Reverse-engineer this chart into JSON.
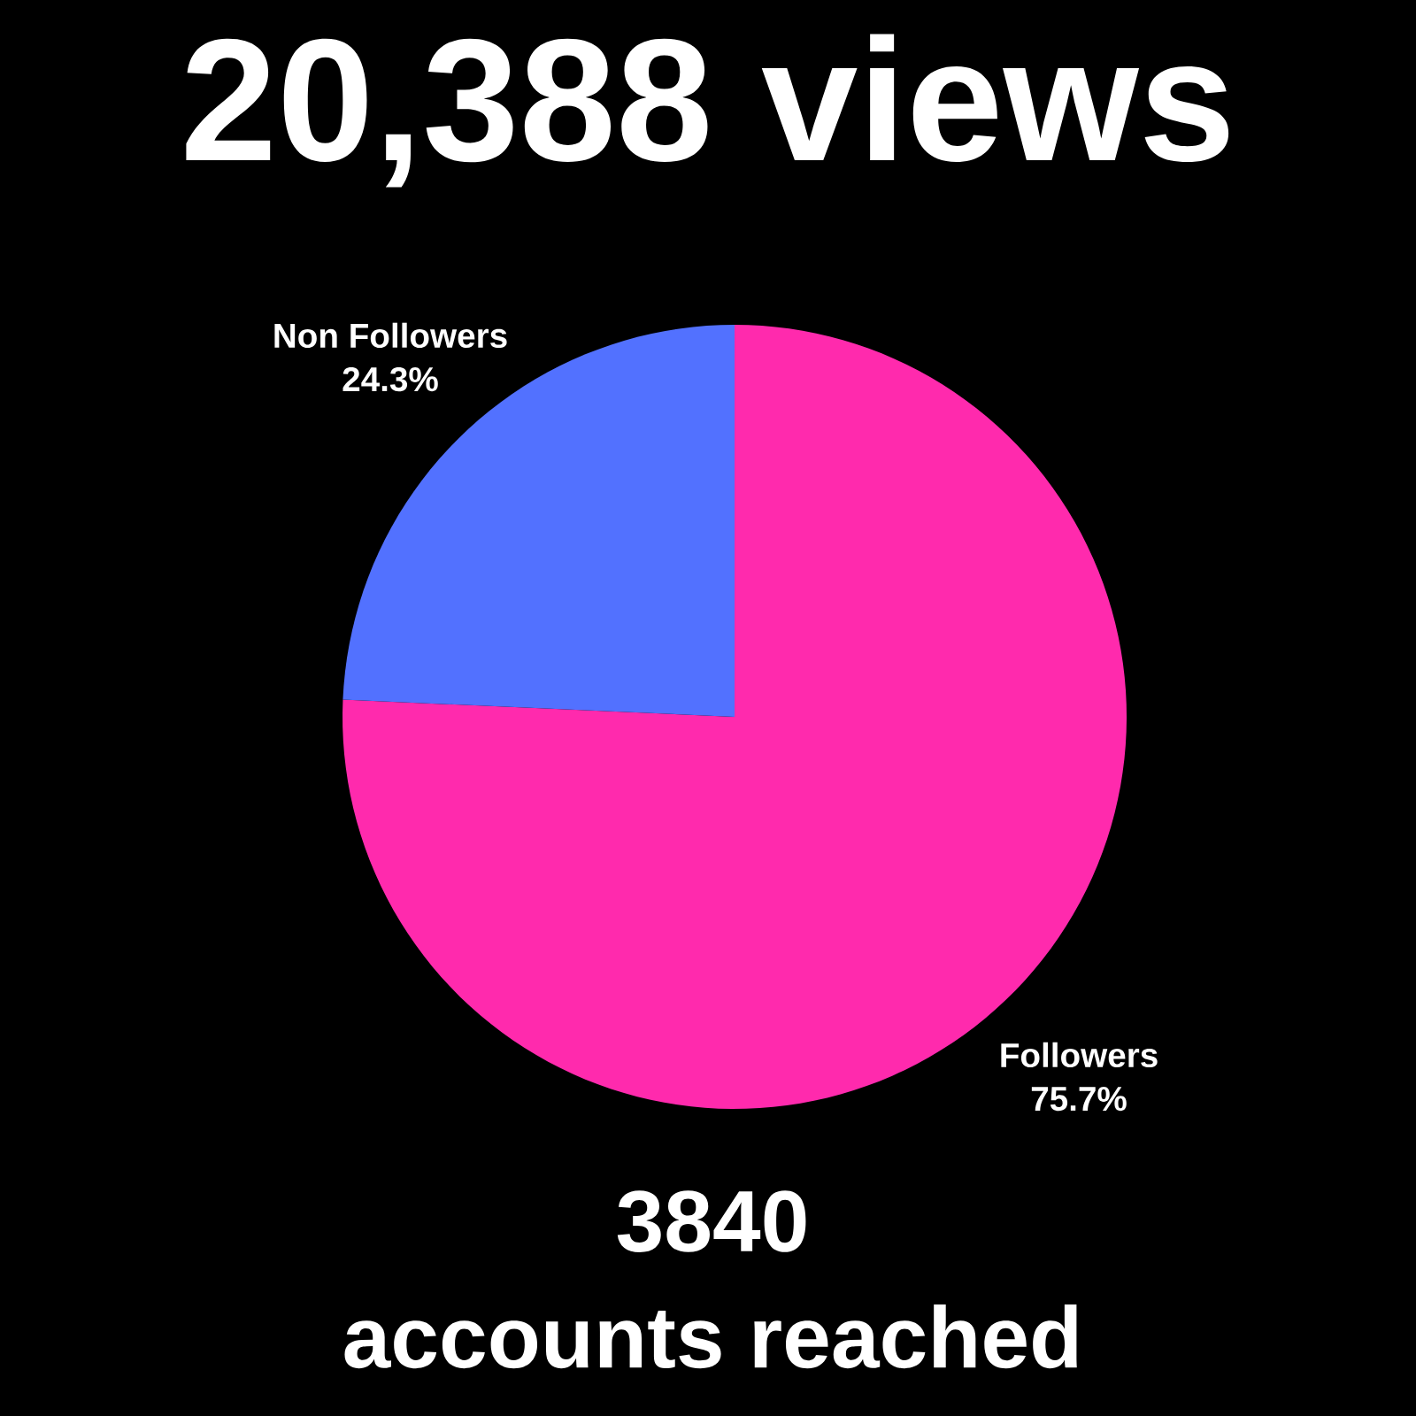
{
  "chart_data": {
    "type": "pie",
    "title": "20,388 views",
    "categories": [
      "Followers",
      "Non Followers"
    ],
    "values": [
      75.7,
      24.3
    ],
    "value_labels": [
      "75.7%",
      "24.3%"
    ],
    "colors": [
      "#ff2aad",
      "#5271ff"
    ],
    "annotations": [
      "3840",
      "accounts reached"
    ]
  }
}
